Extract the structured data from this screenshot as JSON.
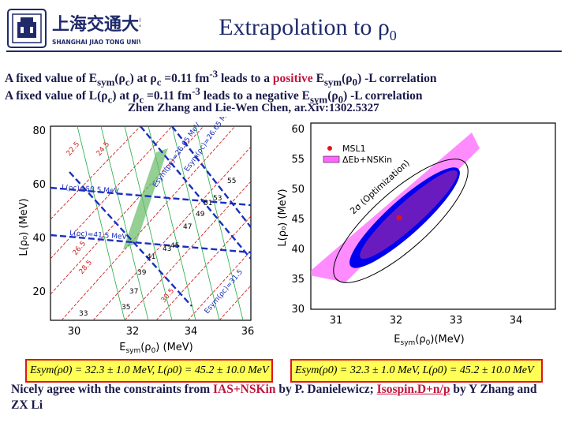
{
  "header": {
    "logo": {
      "name_cn": "上海交通大学",
      "name_en": "SHANGHAI JIAO TONG UNIVERSITY",
      "color": "#1f2a6b"
    },
    "title": "Extrapolation to ρ",
    "title_sub": "0"
  },
  "statements": {
    "line1": {
      "a": "A fixed value of E",
      "sym1": "sym",
      "b": "(ρ",
      "c1": "c",
      "d": ") at ρ",
      "c2": "c",
      "e": " =0.11 fm",
      "exp": "-3",
      "f": " leads to a ",
      "kw": "positive",
      "g": " E",
      "sym2": "sym",
      "h": "(ρ",
      "zero": "0",
      "i": ") -L correlation"
    },
    "line2": {
      "a": "A fixed value of L(ρ",
      "c1": "c",
      "d": ") at ρ",
      "c2": "c",
      "e": " =0.11 fm",
      "exp": "-3",
      "f": " leads to a ",
      "kw": "negative",
      "g": " E",
      "sym2": "sym",
      "h": "(ρ",
      "zero": "0",
      "i": ") -L correlation"
    },
    "credit": "Zhen Zhang and Lie-Wen Chen, ar.Xiv:1302.5327"
  },
  "left_plot": {
    "xlabel": "E",
    "xlabel_sub": "sym",
    "xlabel_tail": "(ρ",
    "xlabel_zero": "0",
    "xlabel_end": ") (MeV)",
    "ylabel": "L(ρ₀) (MeV)",
    "xticks": [
      "30",
      "32",
      "34",
      "36"
    ],
    "yticks": [
      "20",
      "40",
      "60",
      "80"
    ],
    "blue_labels": [
      "L(ρc)=50.5 MeV",
      "L(ρc)=41.5 MeV",
      "Esym(ρc)=26.65 MeV",
      "Esym(ρc)=26.65 MeV",
      "Esym(ρc)=31.5"
    ],
    "red_labels": [
      "22.5",
      "24.5",
      "26.5",
      "28.5",
      "30.5",
      "33",
      "35",
      "37",
      "39",
      "41",
      "43",
      "45",
      "47",
      "49",
      "51",
      "53",
      "55",
      "31.5"
    ]
  },
  "right_plot": {
    "xlabel": "E",
    "xlabel_sub": "sym",
    "xlabel_tail": "(ρ",
    "xlabel_zero": "0",
    "xlabel_end": ")(MeV)",
    "ylabel": "L(ρ₀) (MeV)",
    "xticks": [
      "31",
      "32",
      "33",
      "34"
    ],
    "yticks": [
      "30",
      "35",
      "40",
      "45",
      "50",
      "55",
      "60"
    ],
    "legend": [
      "MSL1",
      "ΔEb+NSKin"
    ],
    "annotation": "2σ (Optimization)",
    "colors": {
      "band": "#ff66ff",
      "blue": "#0000ee",
      "purple": "#6a1bbf",
      "point": "#e0141e"
    }
  },
  "formulas": {
    "left": "Esym(ρ0) = 32.3 ± 1.0 MeV, L(ρ0) = 45.2 ± 10.0 MeV",
    "right": "Esym(ρ0) = 32.3 ± 1.0 MeV, L(ρ0) = 45.2 ± 10.0 MeV"
  },
  "conclusion": {
    "a": "Nicely agree with the constraints from ",
    "b": "IAS+NSKin",
    "c": " by P. Danielewicz; ",
    "d": "Isospin.D+n/p",
    "e": " by Y Zhang and ZX Li"
  }
}
